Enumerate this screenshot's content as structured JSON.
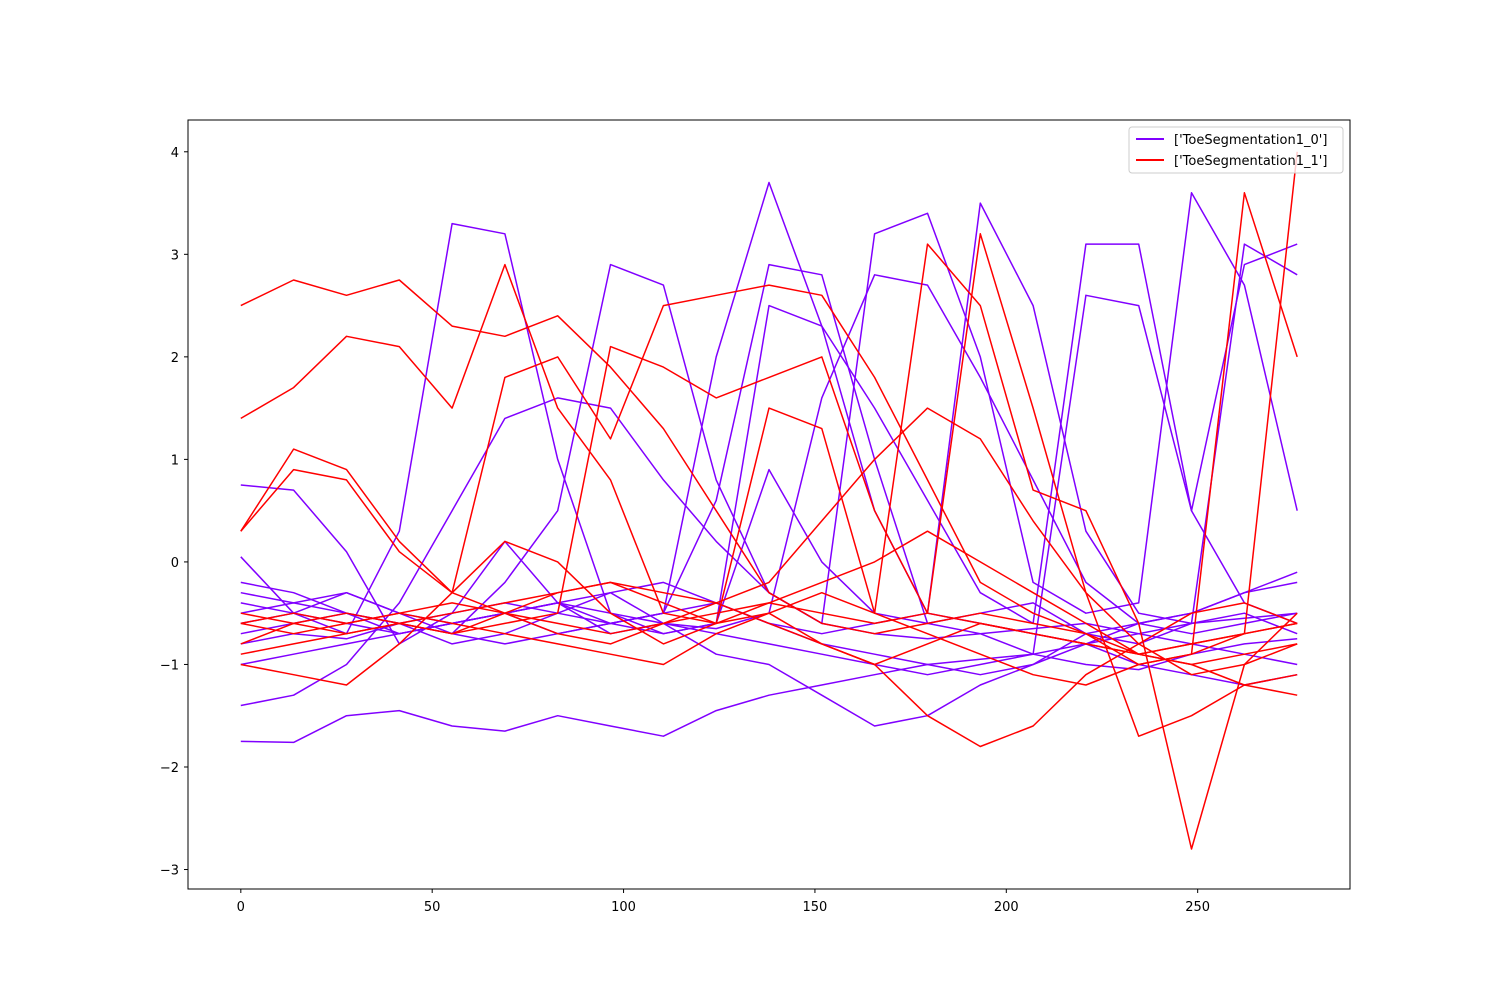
{
  "chart_data": {
    "type": "line",
    "title": "",
    "xlabel": "",
    "ylabel": "",
    "xlim": [
      -13.8,
      289.8
    ],
    "ylim": [
      -3.19,
      4.31
    ],
    "grid": false,
    "legend_position": "top-right",
    "xticks": [
      0,
      50,
      100,
      150,
      200,
      250
    ],
    "xtick_labels": [
      "0",
      "50",
      "100",
      "150",
      "200",
      "250"
    ],
    "yticks": [
      -3,
      -2,
      -1,
      0,
      1,
      2,
      3,
      4
    ],
    "ytick_labels": [
      "−3",
      "−2",
      "−1",
      "0",
      "1",
      "2",
      "3",
      "4"
    ],
    "n_points": 277,
    "legend": [
      {
        "label": "['ToeSegmentation1_0']",
        "color": "#8000ff"
      },
      {
        "label": "['ToeSegmentation1_1']",
        "color": "#ff0000"
      }
    ],
    "series": [
      {
        "class": 0,
        "values": [
          0.75,
          0.7,
          0.1,
          -0.8,
          -0.5,
          0.2,
          -0.4,
          -0.7,
          -0.6,
          -0.65,
          -0.5,
          1.6,
          2.8,
          2.7,
          1.8,
          0.8,
          -0.2,
          -0.6,
          -0.7,
          -0.6,
          -0.5
        ]
      },
      {
        "class": 0,
        "values": [
          -1.4,
          -1.3,
          -1.0,
          -0.4,
          0.5,
          1.4,
          1.6,
          1.5,
          0.8,
          0.2,
          -0.3,
          -0.6,
          -0.7,
          -0.75,
          -0.7,
          -0.65,
          -0.6,
          -0.7,
          -0.6,
          -0.55,
          -0.5
        ]
      },
      {
        "class": 0,
        "values": [
          -1.75,
          -1.76,
          -1.5,
          -1.45,
          -1.6,
          -1.65,
          -1.5,
          -1.6,
          -1.7,
          -1.45,
          -1.3,
          -1.2,
          -1.1,
          -1.0,
          -0.95,
          -0.9,
          -1.0,
          -1.05,
          -0.9,
          -0.8,
          -0.75
        ]
      },
      {
        "class": 0,
        "values": [
          0.05,
          -0.5,
          -0.7,
          0.3,
          3.3,
          3.2,
          1.0,
          -0.5,
          -0.7,
          -0.6,
          0.9,
          0.0,
          -0.5,
          -0.6,
          -0.5,
          -0.4,
          -0.7,
          -0.8,
          -0.6,
          -0.5,
          -0.7
        ]
      },
      {
        "class": 0,
        "values": [
          -0.6,
          -0.5,
          -0.3,
          -0.5,
          -0.7,
          -0.2,
          0.5,
          2.9,
          2.7,
          0.8,
          -0.3,
          -0.6,
          3.2,
          3.4,
          2.0,
          -0.2,
          -0.5,
          -0.4,
          3.6,
          2.7,
          0.5
        ]
      },
      {
        "class": 0,
        "values": [
          -0.8,
          -0.7,
          -0.75,
          -0.6,
          -0.8,
          -0.7,
          -0.5,
          -0.3,
          -0.6,
          -0.9,
          -1.0,
          -1.3,
          -1.6,
          -1.5,
          -1.2,
          -1.0,
          -0.7,
          -0.6,
          -0.5,
          -0.3,
          -0.1
        ]
      },
      {
        "class": 0,
        "values": [
          -0.4,
          -0.5,
          -0.6,
          -0.7,
          -0.6,
          -0.5,
          -0.7,
          -0.6,
          -0.5,
          2.0,
          3.7,
          2.3,
          0.5,
          -0.5,
          3.5,
          2.5,
          0.3,
          -0.5,
          -0.6,
          3.1,
          2.8
        ]
      },
      {
        "class": 0,
        "values": [
          -0.2,
          -0.3,
          -0.5,
          -0.7,
          -0.6,
          -0.5,
          -0.4,
          -0.6,
          -0.7,
          -0.6,
          2.5,
          2.3,
          1.5,
          0.6,
          -0.3,
          -0.6,
          3.1,
          3.1,
          0.5,
          -0.4,
          -0.6
        ]
      },
      {
        "class": 0,
        "values": [
          -1.0,
          -0.9,
          -0.8,
          -0.7,
          -0.6,
          -0.5,
          -0.4,
          -0.5,
          -0.6,
          -0.7,
          -0.8,
          -0.9,
          -1.0,
          -1.1,
          -1.0,
          -0.9,
          -0.8,
          -0.7,
          -0.8,
          -0.9,
          -1.0
        ]
      },
      {
        "class": 0,
        "values": [
          -0.7,
          -0.6,
          -0.5,
          -0.6,
          -0.7,
          -0.8,
          -0.7,
          -0.6,
          -0.5,
          0.6,
          2.9,
          2.8,
          1.0,
          -0.6,
          -0.7,
          -0.9,
          2.6,
          2.5,
          0.5,
          2.9,
          3.1
        ]
      },
      {
        "class": 0,
        "values": [
          -0.3,
          -0.4,
          -0.3,
          -0.5,
          -0.6,
          -0.5,
          -0.4,
          -0.3,
          -0.2,
          -0.4,
          -0.6,
          -0.8,
          -0.9,
          -1.0,
          -1.1,
          -1.0,
          -0.8,
          -0.6,
          -0.5,
          -0.3,
          -0.2
        ]
      },
      {
        "class": 0,
        "values": [
          -0.5,
          -0.4,
          -0.5,
          -0.6,
          -0.5,
          -0.4,
          -0.5,
          -0.6,
          -0.5,
          -0.4,
          -0.6,
          -0.7,
          -0.6,
          -0.5,
          -0.6,
          -0.7,
          -0.8,
          -1.0,
          -1.1,
          -1.2,
          -1.1
        ]
      },
      {
        "class": 1,
        "values": [
          2.5,
          2.75,
          2.6,
          2.75,
          2.3,
          2.2,
          2.4,
          1.9,
          1.3,
          0.5,
          -0.3,
          -0.6,
          -0.7,
          -0.6,
          -0.5,
          -0.6,
          -0.7,
          -0.9,
          -1.0,
          -1.2,
          -1.3
        ]
      },
      {
        "class": 1,
        "values": [
          1.4,
          1.7,
          2.2,
          2.1,
          1.5,
          2.9,
          1.5,
          0.8,
          -0.5,
          -0.6,
          -0.5,
          -0.8,
          -1.0,
          -1.5,
          -1.8,
          -1.6,
          -1.1,
          -0.8,
          -0.5,
          -0.4,
          -0.6
        ]
      },
      {
        "class": 1,
        "values": [
          0.3,
          1.1,
          0.9,
          0.2,
          -0.3,
          1.8,
          2.0,
          1.2,
          2.5,
          2.6,
          2.7,
          2.6,
          1.8,
          0.8,
          -0.2,
          -0.5,
          -0.7,
          -1.0,
          -0.9,
          -0.7,
          -0.6
        ]
      },
      {
        "class": 1,
        "values": [
          -0.8,
          -0.6,
          -0.5,
          -0.6,
          -0.7,
          -0.6,
          -0.5,
          2.1,
          1.9,
          1.6,
          1.8,
          2.0,
          0.5,
          -0.5,
          3.2,
          1.5,
          -0.3,
          -1.7,
          -1.5,
          -1.2,
          -1.1
        ]
      },
      {
        "class": 1,
        "values": [
          -0.5,
          -0.6,
          -0.7,
          -0.6,
          -0.5,
          -0.4,
          -0.3,
          -0.2,
          -0.4,
          -0.6,
          1.5,
          1.3,
          -0.5,
          3.1,
          2.5,
          0.7,
          0.5,
          -0.6,
          -2.8,
          -1.0,
          -0.5
        ]
      },
      {
        "class": 1,
        "values": [
          -0.6,
          -0.7,
          -0.6,
          -0.5,
          -0.6,
          -0.7,
          -0.8,
          -0.9,
          -1.0,
          -0.7,
          -0.5,
          -0.3,
          -0.5,
          -0.7,
          -0.9,
          -1.1,
          -1.2,
          -1.0,
          -0.9,
          3.6,
          2.0
        ]
      },
      {
        "class": 1,
        "values": [
          -0.9,
          -0.8,
          -0.7,
          -0.6,
          -0.7,
          -0.5,
          -0.3,
          -0.2,
          -0.3,
          -0.4,
          -0.6,
          -0.8,
          -1.0,
          -0.8,
          -0.6,
          -0.7,
          -0.8,
          -0.9,
          -0.8,
          -0.7,
          4.0
        ]
      },
      {
        "class": 1,
        "values": [
          0.3,
          0.9,
          0.8,
          0.1,
          -0.3,
          -0.5,
          -0.7,
          -0.8,
          -0.6,
          -0.4,
          -0.2,
          0.4,
          1.0,
          1.5,
          1.2,
          0.4,
          -0.3,
          -0.8,
          -1.1,
          -1.0,
          -0.8
        ]
      },
      {
        "class": 1,
        "values": [
          -1.0,
          -1.1,
          -1.2,
          -0.8,
          -0.3,
          0.2,
          0.0,
          -0.5,
          -0.8,
          -0.6,
          -0.4,
          -0.2,
          0.0,
          0.3,
          0.0,
          -0.3,
          -0.6,
          -0.9,
          -1.0,
          -0.9,
          -0.8
        ]
      },
      {
        "class": 1,
        "values": [
          -0.6,
          -0.5,
          -0.6,
          -0.5,
          -0.4,
          -0.5,
          -0.6,
          -0.7,
          -0.6,
          -0.5,
          -0.4,
          -0.5,
          -0.6,
          -0.5,
          -0.6,
          -0.7,
          -0.8,
          -0.9,
          -0.8,
          -0.7,
          -0.6
        ]
      }
    ]
  }
}
